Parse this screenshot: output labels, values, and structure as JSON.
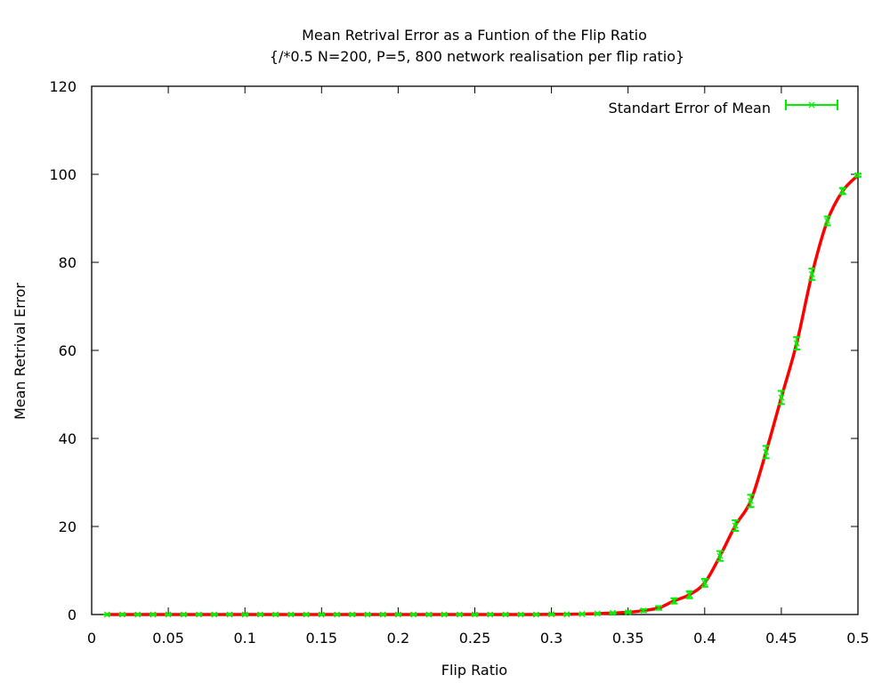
{
  "chart_data": {
    "type": "line",
    "title": "Mean Retrival Error as a Funtion of the Flip Ratio",
    "subtitle": "{/*0.5 N=200, P=5, 800 network realisation per flip ratio}",
    "xlabel": "Flip Ratio",
    "ylabel": "Mean Retrival Error",
    "xlim": [
      0,
      0.5
    ],
    "ylim": [
      0,
      120
    ],
    "xticks": [
      0,
      0.05,
      0.1,
      0.15,
      0.2,
      0.25,
      0.3,
      0.35,
      0.4,
      0.45,
      0.5
    ],
    "xtick_labels": [
      "0",
      "0.05",
      "0.1",
      "0.15",
      "0.2",
      "0.25",
      "0.3",
      "0.35",
      "0.4",
      "0.45",
      "0.5"
    ],
    "yticks": [
      0,
      20,
      40,
      60,
      80,
      100,
      120
    ],
    "ytick_labels": [
      "0",
      "20",
      "40",
      "60",
      "80",
      "100",
      "120"
    ],
    "grid": false,
    "legend_position": "top-right",
    "series": [
      {
        "name": "",
        "style": "line",
        "color": "#ff0000",
        "x": [
          0.01,
          0.02,
          0.03,
          0.04,
          0.05,
          0.06,
          0.07,
          0.08,
          0.09,
          0.1,
          0.11,
          0.12,
          0.13,
          0.14,
          0.15,
          0.16,
          0.17,
          0.18,
          0.19,
          0.2,
          0.21,
          0.22,
          0.23,
          0.24,
          0.25,
          0.26,
          0.27,
          0.28,
          0.29,
          0.3,
          0.31,
          0.32,
          0.33,
          0.34,
          0.35,
          0.36,
          0.37,
          0.38,
          0.39,
          0.4,
          0.41,
          0.42,
          0.43,
          0.44,
          0.45,
          0.46,
          0.47,
          0.48,
          0.49,
          0.5
        ],
        "y": [
          0,
          0,
          0,
          0,
          0,
          0,
          0,
          0,
          0,
          0,
          0,
          0,
          0,
          0,
          0,
          0,
          0,
          0,
          0,
          0,
          0,
          0,
          0,
          0,
          0,
          0,
          0,
          0,
          0,
          0.05,
          0.05,
          0.1,
          0.2,
          0.35,
          0.5,
          0.9,
          1.5,
          3.1,
          4.5,
          7.2,
          13.3,
          20.2,
          25.8,
          36.9,
          49.3,
          61.6,
          77.3,
          89.4,
          96.2,
          99.8
        ]
      },
      {
        "name": "Standart Error of Mean",
        "style": "errorbars",
        "color": "#00ee00",
        "x": [
          0.01,
          0.02,
          0.03,
          0.04,
          0.05,
          0.06,
          0.07,
          0.08,
          0.09,
          0.1,
          0.11,
          0.12,
          0.13,
          0.14,
          0.15,
          0.16,
          0.17,
          0.18,
          0.19,
          0.2,
          0.21,
          0.22,
          0.23,
          0.24,
          0.25,
          0.26,
          0.27,
          0.28,
          0.29,
          0.3,
          0.31,
          0.32,
          0.33,
          0.34,
          0.35,
          0.36,
          0.37,
          0.38,
          0.39,
          0.4,
          0.41,
          0.42,
          0.43,
          0.44,
          0.45,
          0.46,
          0.47,
          0.48,
          0.49,
          0.5
        ],
        "y": [
          0,
          0,
          0,
          0,
          0,
          0,
          0,
          0,
          0,
          0,
          0,
          0,
          0,
          0,
          0,
          0,
          0,
          0,
          0,
          0,
          0,
          0,
          0,
          0,
          0,
          0,
          0,
          0,
          0,
          0.05,
          0.05,
          0.1,
          0.2,
          0.35,
          0.5,
          0.9,
          1.5,
          3.1,
          4.5,
          7.2,
          13.3,
          20.2,
          25.8,
          36.9,
          49.3,
          61.6,
          77.3,
          89.4,
          96.2,
          99.8
        ],
        "err": [
          0.05,
          0.05,
          0.05,
          0.05,
          0.05,
          0.05,
          0.05,
          0.05,
          0.05,
          0.05,
          0.05,
          0.05,
          0.05,
          0.05,
          0.05,
          0.05,
          0.05,
          0.05,
          0.05,
          0.05,
          0.05,
          0.05,
          0.05,
          0.05,
          0.05,
          0.05,
          0.05,
          0.05,
          0.05,
          0.05,
          0.05,
          0.1,
          0.1,
          0.15,
          0.2,
          0.3,
          0.4,
          0.6,
          0.8,
          0.9,
          1.1,
          1.2,
          1.4,
          1.4,
          1.5,
          1.4,
          1.3,
          1.0,
          0.7,
          0.3
        ]
      }
    ]
  }
}
